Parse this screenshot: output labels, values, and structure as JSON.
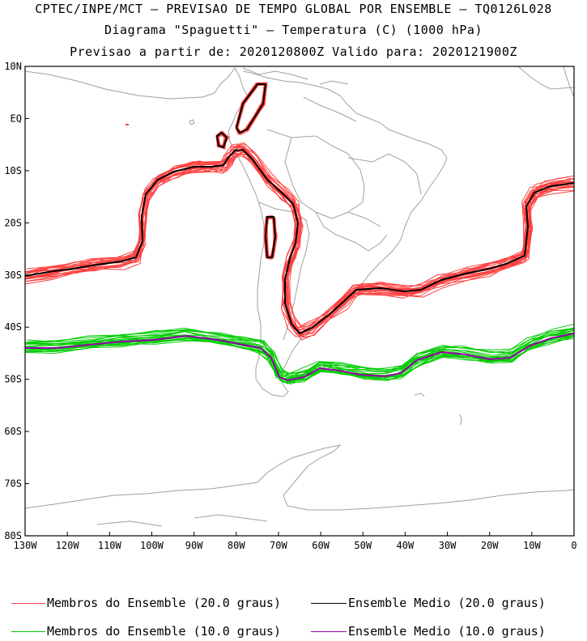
{
  "titles": {
    "line1": "CPTEC/INPE/MCT – PREVISAO DE TEMPO GLOBAL POR ENSEMBLE – TQ0126L028",
    "line2": "Diagrama \"Spaguetti\" – Temperatura (C) (1000 hPa)",
    "line3": "Previsao a partir de: 2020120800Z  Valido para: 2020121900Z"
  },
  "map": {
    "lon_labels": [
      "130W",
      "120W",
      "110W",
      "100W",
      "90W",
      "80W",
      "70W",
      "60W",
      "50W",
      "40W",
      "30W",
      "20W",
      "10W",
      "0"
    ],
    "lat_labels": [
      "10N",
      "EQ",
      "10S",
      "20S",
      "30S",
      "40S",
      "50S",
      "60S",
      "70S",
      "80S"
    ],
    "lon_range": [
      -130,
      0
    ],
    "lat_range": [
      -80,
      10
    ],
    "coast_color": "#a0a0a0"
  },
  "isolines": {
    "member_20_color": "#ff4040",
    "mean_20_color": "#000000",
    "member_10_color": "#00cc00",
    "mean_10_color": "#9900aa",
    "member_count": 20
  },
  "legend": {
    "item1": "Membros do Ensemble (20.0 graus)",
    "item2": "Ensemble Medio (20.0 graus)",
    "item3": "Membros do Ensemble (10.0 graus)",
    "item4": "Ensemble Medio (10.0 graus)"
  }
}
